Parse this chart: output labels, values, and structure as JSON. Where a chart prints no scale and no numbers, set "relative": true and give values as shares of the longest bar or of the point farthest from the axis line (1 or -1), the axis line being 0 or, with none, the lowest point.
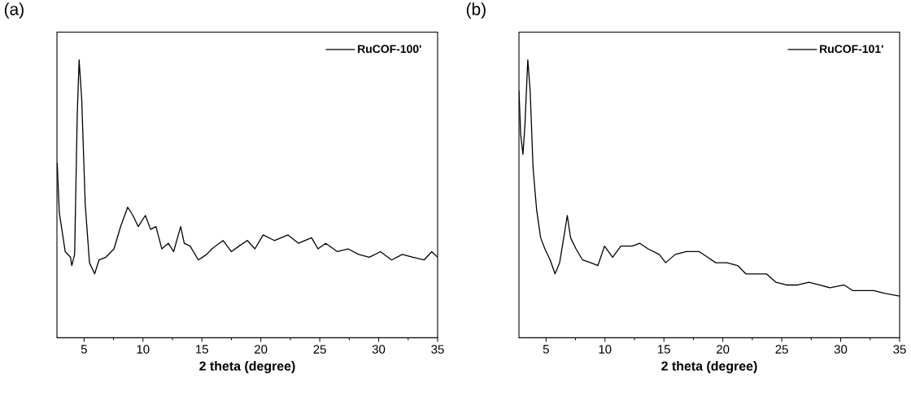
{
  "chart_data": [
    {
      "type": "line",
      "title": "(a)",
      "xlabel": "2 theta (degree)",
      "relative": true,
      "xlim": [
        2.7,
        35
      ],
      "xticks": [
        5,
        10,
        15,
        20,
        25,
        30,
        35
      ],
      "legend": "top right",
      "marker": "none",
      "tick_labels": "x",
      "series": [
        {
          "name": "RuCOF-100'",
          "color": "#000000",
          "x": [
            2.72,
            2.9,
            3.4,
            3.85,
            3.96,
            4.2,
            4.42,
            4.58,
            4.8,
            5.1,
            5.46,
            5.9,
            6.27,
            6.85,
            7.54,
            8.1,
            8.7,
            9.15,
            9.6,
            10.2,
            10.65,
            11.1,
            11.6,
            12.15,
            12.6,
            13.2,
            13.5,
            14.0,
            14.7,
            15.4,
            15.85,
            16.8,
            17.5,
            18.15,
            18.85,
            19.5,
            20.2,
            21.15,
            22.3,
            23.2,
            24.3,
            24.85,
            25.5,
            26.5,
            27.4,
            28.3,
            29.2,
            30.15,
            31.1,
            32.0,
            32.9,
            33.85,
            34.5,
            35.0
          ],
          "values": [
            0.63,
            0.45,
            0.31,
            0.29,
            0.26,
            0.3,
            0.8,
            1.0,
            0.86,
            0.48,
            0.27,
            0.23,
            0.28,
            0.29,
            0.32,
            0.4,
            0.47,
            0.44,
            0.4,
            0.44,
            0.39,
            0.4,
            0.32,
            0.34,
            0.31,
            0.4,
            0.34,
            0.33,
            0.28,
            0.3,
            0.32,
            0.35,
            0.31,
            0.33,
            0.35,
            0.32,
            0.37,
            0.35,
            0.37,
            0.34,
            0.36,
            0.32,
            0.34,
            0.31,
            0.32,
            0.3,
            0.29,
            0.31,
            0.28,
            0.3,
            0.29,
            0.28,
            0.31,
            0.29
          ]
        }
      ]
    },
    {
      "type": "line",
      "title": "(b)",
      "xlabel": "2 theta (degree)",
      "relative": true,
      "xlim": [
        2.7,
        35
      ],
      "xticks": [
        5,
        10,
        15,
        20,
        25,
        30,
        35
      ],
      "legend": "top right",
      "marker": "none",
      "tick_labels": "x",
      "series": [
        {
          "name": "RuCOF-101'",
          "color": "#000000",
          "x": [
            2.7,
            2.85,
            3.04,
            3.2,
            3.45,
            3.65,
            3.9,
            4.2,
            4.54,
            4.9,
            5.35,
            5.76,
            6.15,
            6.5,
            6.8,
            7.08,
            7.54,
            8.1,
            8.8,
            9.4,
            9.96,
            10.65,
            11.35,
            12.3,
            12.96,
            13.65,
            14.6,
            15.15,
            15.96,
            16.9,
            18.0,
            18.7,
            19.4,
            20.35,
            21.25,
            21.95,
            22.9,
            23.7,
            24.5,
            25.4,
            26.35,
            27.3,
            28.2,
            29.1,
            30.3,
            31.0,
            31.9,
            32.8,
            33.7,
            35.0
          ],
          "values": [
            0.89,
            0.73,
            0.66,
            0.76,
            1.0,
            0.89,
            0.61,
            0.46,
            0.36,
            0.32,
            0.28,
            0.23,
            0.27,
            0.36,
            0.44,
            0.36,
            0.32,
            0.28,
            0.27,
            0.26,
            0.33,
            0.29,
            0.33,
            0.33,
            0.34,
            0.32,
            0.3,
            0.27,
            0.3,
            0.31,
            0.31,
            0.29,
            0.27,
            0.27,
            0.26,
            0.23,
            0.23,
            0.23,
            0.2,
            0.19,
            0.19,
            0.2,
            0.19,
            0.18,
            0.19,
            0.17,
            0.17,
            0.17,
            0.16,
            0.15
          ]
        }
      ]
    }
  ]
}
